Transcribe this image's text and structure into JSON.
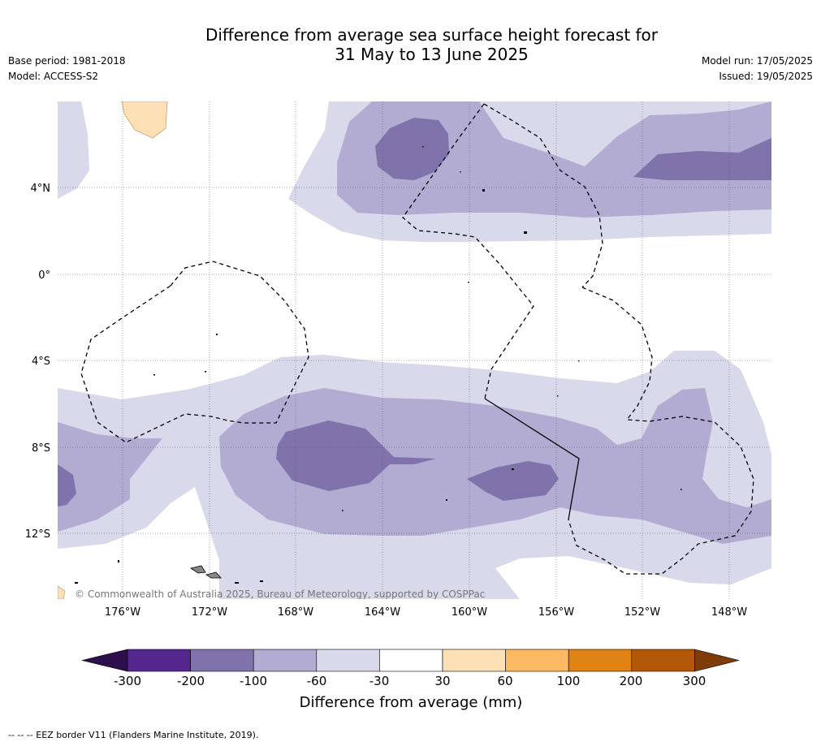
{
  "header": {
    "title_line1": "Difference from average sea surface height forecast for",
    "title_line2": "31 May to 13 June 2025",
    "base_period": "Base period: 1981-2018",
    "model": "Model: ACCESS-S2",
    "model_run": "Model run: 17/05/2025",
    "issued": "Issued: 19/05/2025"
  },
  "map": {
    "latitude_labels": [
      "4°N",
      "0°",
      "4°S",
      "8°S",
      "12°S"
    ],
    "longitude_labels": [
      "176°W",
      "172°W",
      "168°W",
      "164°W",
      "160°W",
      "156°W",
      "152°W",
      "148°W"
    ],
    "copyright": "© Commonwealth of Australia 2025, Bureau of Meteorology, supported by COSPPac"
  },
  "colorbar": {
    "label": "Difference from average (mm)",
    "ticks": [
      "-300",
      "-200",
      "-100",
      "-60",
      "-30",
      "30",
      "60",
      "100",
      "200",
      "300"
    ],
    "colors": {
      "below": "#2d0f4e",
      "m300_m200": "#54278f",
      "m200_m100": "#8073ac",
      "m100_m60": "#b2abd2",
      "m60_m30": "#d8daeb",
      "m30_30": "#ffffff",
      "p30_60": "#fee0b6",
      "p60_100": "#fdb863",
      "p100_200": "#e08214",
      "p200_300": "#b35806",
      "above": "#7f3b08"
    }
  },
  "footnote": "-- -- -- EEZ border V11 (Flanders Marine Institute, 2019)."
}
